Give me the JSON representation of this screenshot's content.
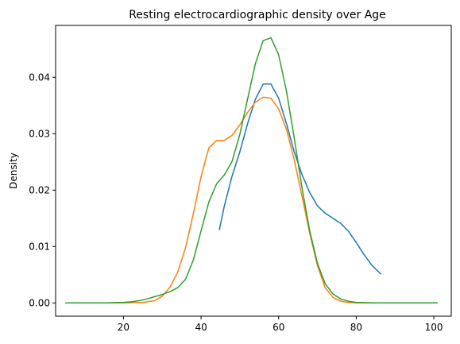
{
  "chart_data": {
    "type": "line",
    "title": "Resting electrocardiographic density over Age",
    "xlabel": "",
    "ylabel": "Density",
    "xlim": [
      2.5,
      104.5
    ],
    "ylim": [
      -0.00235,
      0.0492
    ],
    "xticks": [
      20,
      40,
      60,
      80,
      100
    ],
    "yticks": [
      0.0,
      0.01,
      0.02,
      0.03,
      0.04
    ],
    "ytick_labels": [
      "0.00",
      "0.01",
      "0.02",
      "0.03",
      "0.04"
    ],
    "grid": false,
    "series": [
      {
        "color": "#1f77b4",
        "x": [
          44.7,
          46,
          48,
          50,
          52,
          54,
          56,
          58,
          60,
          62,
          64,
          66,
          68,
          70,
          72,
          74,
          76,
          78,
          80,
          82,
          84,
          86.4
        ],
        "y": [
          0.0129,
          0.0172,
          0.0225,
          0.0268,
          0.0318,
          0.0361,
          0.0388,
          0.0388,
          0.0363,
          0.0318,
          0.0268,
          0.0228,
          0.0196,
          0.0172,
          0.0159,
          0.015,
          0.0141,
          0.0127,
          0.0107,
          0.0086,
          0.0067,
          0.0051
        ]
      },
      {
        "color": "#ff7f0e",
        "x": [
          5,
          10,
          15,
          20,
          25,
          28,
          30,
          32,
          34,
          36,
          38,
          40,
          42,
          44,
          46,
          48,
          50,
          52,
          54,
          56,
          58,
          60,
          62,
          64,
          66,
          68,
          70,
          72,
          74,
          76,
          78,
          80,
          85,
          90,
          95,
          101
        ],
        "y": [
          0,
          0,
          0,
          0,
          0.0001,
          0.0004,
          0.0012,
          0.0028,
          0.0055,
          0.0098,
          0.0158,
          0.0224,
          0.0275,
          0.0288,
          0.0288,
          0.0297,
          0.0316,
          0.0338,
          0.0356,
          0.0365,
          0.0363,
          0.0344,
          0.0308,
          0.0254,
          0.019,
          0.0124,
          0.0066,
          0.0027,
          0.001,
          0.0003,
          0.0001,
          0,
          0,
          0,
          0,
          0
        ]
      },
      {
        "color": "#2ca02c",
        "x": [
          5,
          10,
          15,
          20,
          22,
          24,
          26,
          28,
          30,
          32,
          34,
          36,
          38,
          40,
          42,
          44,
          46,
          48,
          50,
          52,
          54,
          56,
          58,
          60,
          62,
          64,
          66,
          68,
          70,
          72,
          74,
          76,
          78,
          80,
          85,
          90,
          95,
          101
        ],
        "y": [
          0,
          0,
          0,
          0.0001,
          0.0002,
          0.0004,
          0.0007,
          0.0011,
          0.0015,
          0.002,
          0.0027,
          0.0042,
          0.0076,
          0.0128,
          0.0179,
          0.0211,
          0.0227,
          0.0251,
          0.0299,
          0.0362,
          0.0424,
          0.0465,
          0.047,
          0.044,
          0.0376,
          0.0293,
          0.0205,
          0.0128,
          0.007,
          0.0034,
          0.0016,
          0.0007,
          0.0003,
          0.0001,
          0,
          0,
          0,
          0
        ]
      }
    ]
  }
}
